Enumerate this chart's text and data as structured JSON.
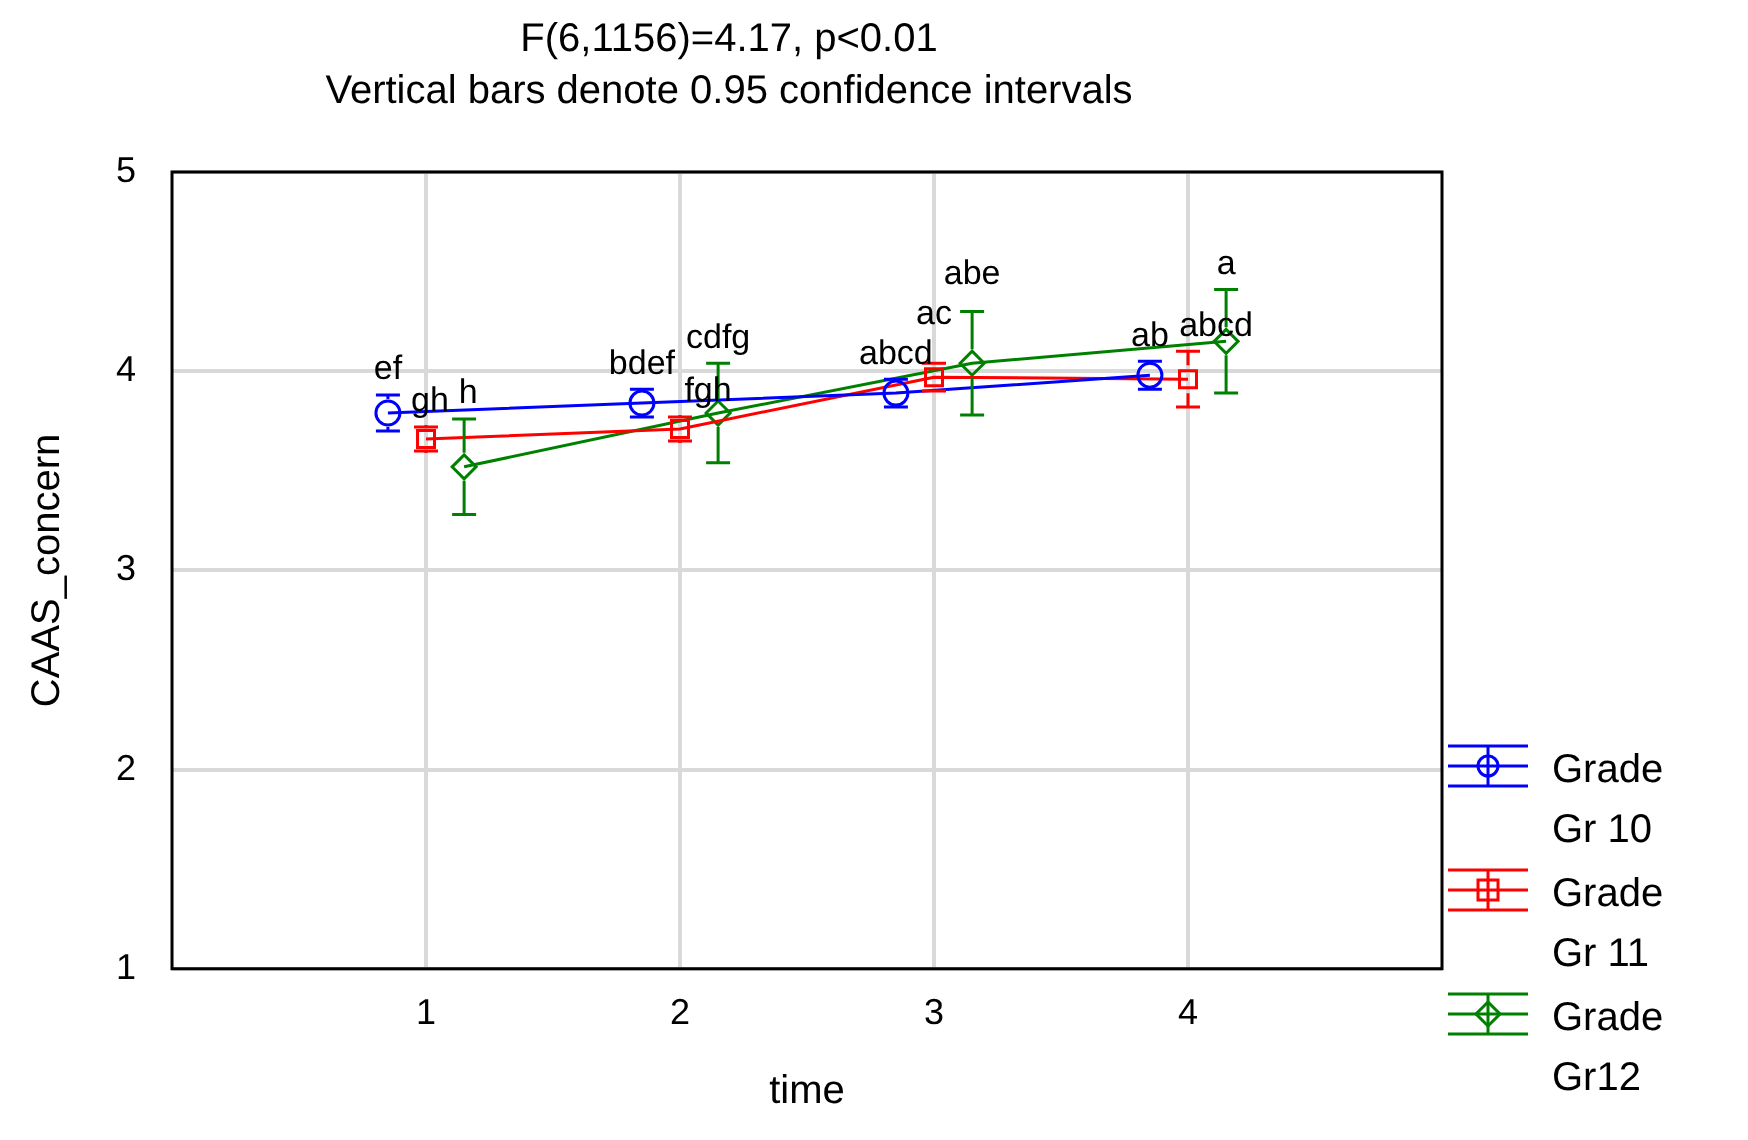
{
  "chart_data": {
    "type": "line",
    "title": "F(6,1156)=4.17, p<0.01",
    "subtitle": "Vertical bars denote 0.95 confidence intervals",
    "xlabel": "time",
    "ylabel": "CAAS_concern",
    "xlim": [
      0,
      5
    ],
    "xticks": [
      1,
      2,
      3,
      4
    ],
    "ylim": [
      1,
      5
    ],
    "yticks": [
      1,
      2,
      3,
      4,
      5
    ],
    "grid": true,
    "legend": "bottom right",
    "line_style": "solid",
    "series": [
      {
        "name": "Grade Gr 10",
        "color": "#0000ff",
        "marker": "circle",
        "x": [
          0.85,
          1.85,
          2.85,
          3.85
        ],
        "values": [
          3.79,
          3.84,
          3.89,
          3.98
        ],
        "errors": [
          0.09,
          0.07,
          0.07,
          0.07
        ]
      },
      {
        "name": "Grade Gr 11",
        "color": "#ff0000",
        "marker": "square",
        "x": [
          1,
          2,
          3,
          4
        ],
        "values": [
          3.66,
          3.71,
          3.97,
          3.96
        ],
        "errors": [
          0.06,
          0.06,
          0.07,
          0.14
        ]
      },
      {
        "name": "Grade Gr12",
        "color": "#008000",
        "marker": "diamond",
        "x": [
          1.15,
          2.15,
          3.15,
          4.15
        ],
        "values": [
          3.52,
          3.79,
          4.04,
          4.15
        ],
        "errors": [
          0.24,
          0.25,
          0.26,
          0.26
        ]
      }
    ],
    "annotations": [
      {
        "text": "ef",
        "x": 0.85,
        "y": 3.79
      },
      {
        "text": "gh",
        "x": 1,
        "y": 3.66
      },
      {
        "text": "h",
        "x": 1.15,
        "y": 3.52
      },
      {
        "text": "bdef",
        "x": 1.85,
        "y": 3.84
      },
      {
        "text": "fgh",
        "x": 2,
        "y": 3.71
      },
      {
        "text": "cdfg",
        "x": 2.15,
        "y": 3.79
      },
      {
        "text": "abcd",
        "x": 2.85,
        "y": 3.89
      },
      {
        "text": "ac",
        "x": 3,
        "y": 3.97
      },
      {
        "text": "abe",
        "x": 3.15,
        "y": 4.04
      },
      {
        "text": "ab",
        "x": 3.85,
        "y": 3.98
      },
      {
        "text": "abcd",
        "x": 4,
        "y": 3.96
      },
      {
        "text": "a",
        "x": 4.15,
        "y": 4.15
      }
    ]
  }
}
